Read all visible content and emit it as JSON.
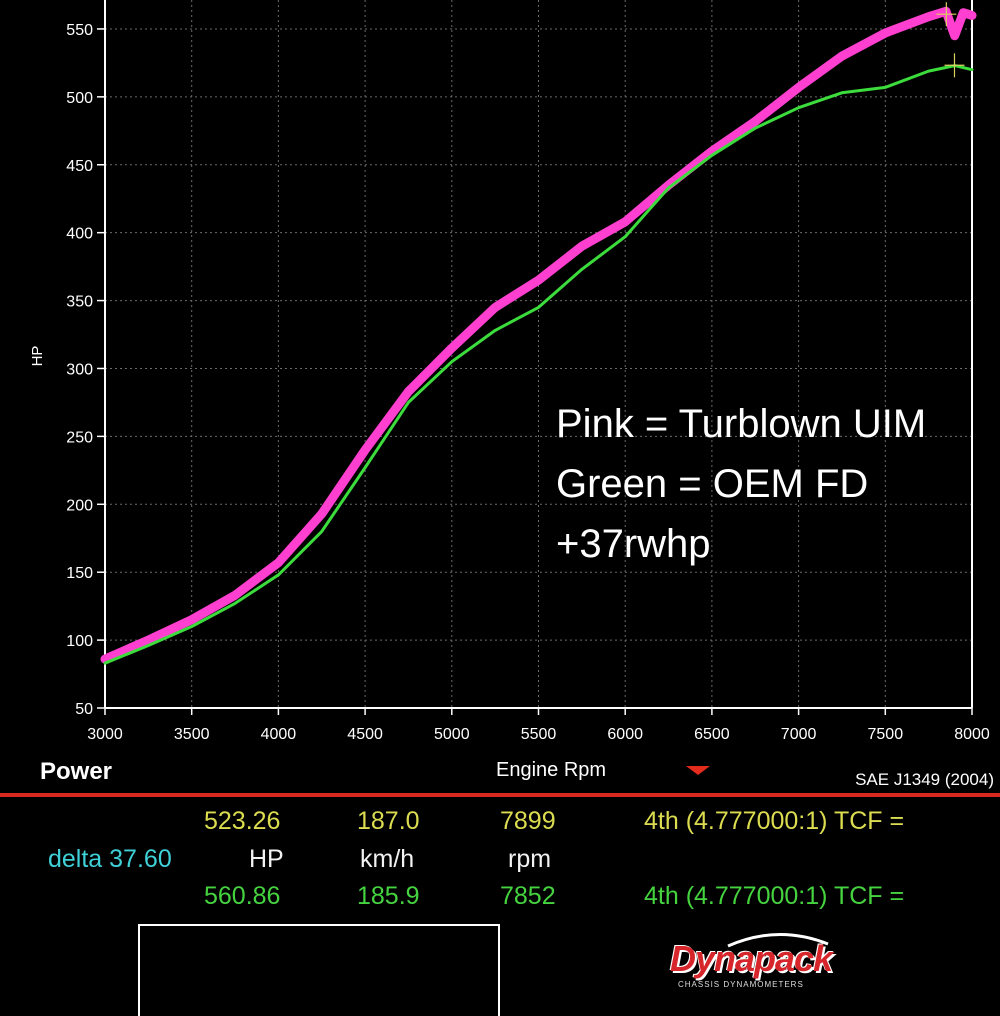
{
  "chart_data": {
    "type": "line",
    "ylabel": "HP",
    "xlabel": "Engine Rpm",
    "xlim": [
      3000,
      8000
    ],
    "ylim": [
      50,
      575
    ],
    "x_ticks": [
      3000,
      3500,
      4000,
      4500,
      5000,
      5500,
      6000,
      6500,
      7000,
      7500,
      8000
    ],
    "y_ticks": [
      50,
      100,
      150,
      200,
      250,
      300,
      350,
      400,
      450,
      500,
      550
    ],
    "grid": true,
    "series": [
      {
        "color": "#ff3fd0",
        "x": [
          3000,
          3250,
          3500,
          3750,
          4000,
          4250,
          4500,
          4750,
          5000,
          5250,
          5500,
          5750,
          6000,
          6250,
          6500,
          6750,
          7000,
          7250,
          7500,
          7750,
          7850,
          7900,
          7950,
          8000
        ],
        "y": [
          86,
          100,
          115,
          133,
          157,
          193,
          240,
          283,
          315,
          345,
          365,
          390,
          408,
          435,
          460,
          482,
          507,
          530,
          547,
          559,
          563,
          545,
          562,
          560
        ]
      },
      {
        "color": "#3cdc3c",
        "x": [
          3000,
          3250,
          3500,
          3750,
          4000,
          4250,
          4500,
          4750,
          5000,
          5250,
          5500,
          5750,
          6000,
          6250,
          6500,
          6750,
          7000,
          7250,
          7500,
          7750,
          7900,
          8000
        ],
        "y": [
          83,
          96,
          110,
          127,
          148,
          180,
          227,
          275,
          305,
          328,
          345,
          373,
          397,
          433,
          457,
          477,
          492,
          503,
          507,
          519,
          523,
          520
        ]
      }
    ],
    "annotations": [
      "Pink = Turblown UIM",
      "Green = OEM FD",
      "+37rwhp"
    ],
    "colors": {
      "pink": "#ff3fd0",
      "green": "#3cdc3c",
      "axis": "#ffffff",
      "grid": "#6b6b6b"
    }
  },
  "footer": {
    "title": "Power",
    "x_title": "Engine Rpm",
    "standard": "SAE J1349 (2004)"
  },
  "readout": {
    "row1": {
      "hp": "523.26",
      "speed": "187.0",
      "rpm": "7899",
      "gear": "4th (4.777000:1) TCF ="
    },
    "row2": {
      "delta": "delta 37.60",
      "hp_unit": "HP",
      "speed_unit": "km/h",
      "rpm_unit": "rpm"
    },
    "row3": {
      "hp": "560.86",
      "speed": "185.9",
      "rpm": "7852",
      "gear": "4th (4.777000:1) TCF ="
    }
  },
  "logo": {
    "name": "Dynapack",
    "sub": "CHASSIS DYNAMOMETERS"
  }
}
